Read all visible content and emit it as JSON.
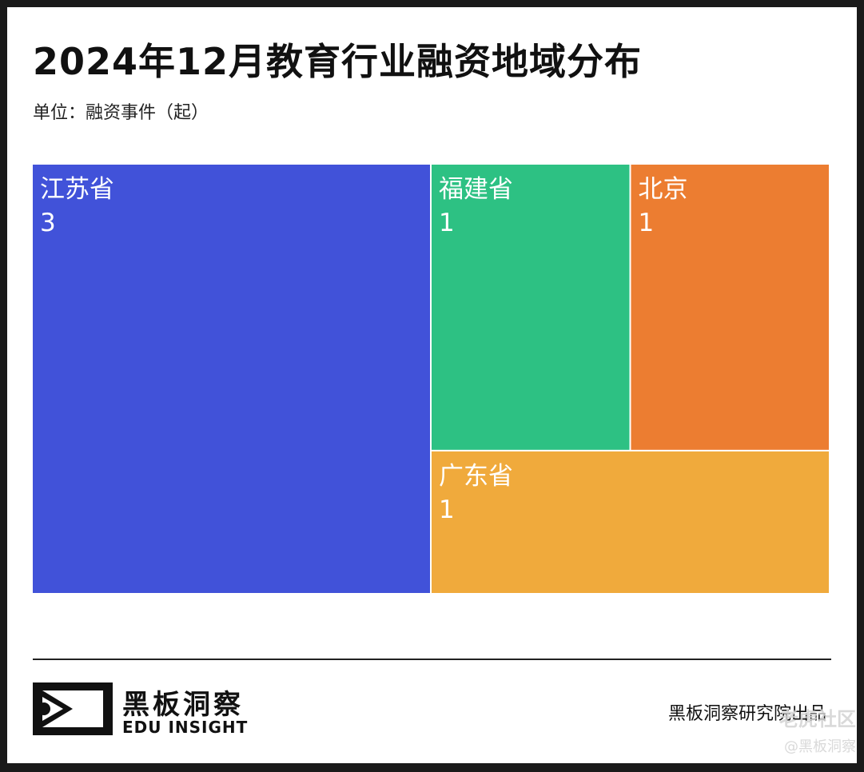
{
  "header": {
    "title": "2024年12月教育行业融资地域分布",
    "unit": "单位：融资事件（起）"
  },
  "chart_data": {
    "type": "treemap",
    "title": "2024年12月教育行业融资地域分布",
    "unit_label": "单位：融资事件（起）",
    "items": [
      {
        "name": "江苏省",
        "value": 3,
        "color": "#4152d9"
      },
      {
        "name": "福建省",
        "value": 1,
        "color": "#2dc183"
      },
      {
        "name": "北京",
        "value": 1,
        "color": "#ec7d31"
      },
      {
        "name": "广东省",
        "value": 1,
        "color": "#f0aa3c"
      }
    ]
  },
  "footer": {
    "logo_cn": "黑板洞察",
    "logo_en": "EDU INSIGHT",
    "credit": "黑板洞察研究院出品"
  },
  "watermark": {
    "line1": "老虎社区",
    "line2": "@黑板洞察"
  },
  "colors": {
    "background": "#ffffff",
    "frame": "#1a1a1a"
  }
}
